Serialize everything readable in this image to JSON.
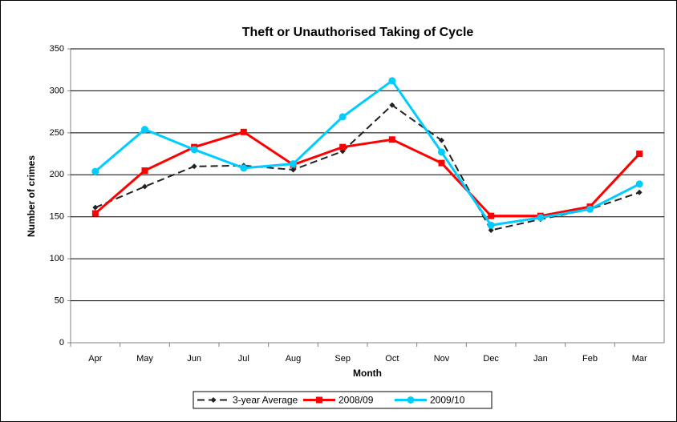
{
  "chart_data": {
    "type": "line",
    "title": "Theft or Unauthorised Taking of Cycle",
    "x_label": "Month",
    "y_label": "Number of crimes",
    "categories": [
      "Apr",
      "May",
      "Jun",
      "Jul",
      "Aug",
      "Sep",
      "Oct",
      "Nov",
      "Dec",
      "Jan",
      "Feb",
      "Mar"
    ],
    "series": [
      {
        "name": "3-year Average",
        "color": "#222222",
        "dash": true,
        "marker": "diamond",
        "values": [
          161,
          186,
          210,
          211,
          206,
          228,
          283,
          241,
          134,
          147,
          159,
          179
        ]
      },
      {
        "name": "2008/09",
        "color": "#ff0000",
        "dash": false,
        "marker": "square",
        "values": [
          154,
          205,
          233,
          251,
          212,
          233,
          242,
          214,
          151,
          151,
          162,
          225
        ]
      },
      {
        "name": "2009/10",
        "color": "#00ccff",
        "dash": false,
        "marker": "circle",
        "values": [
          204,
          254,
          230,
          208,
          213,
          269,
          312,
          227,
          140,
          149,
          159,
          189
        ]
      }
    ],
    "ylim": [
      0,
      350
    ],
    "yticks": [
      0,
      50,
      100,
      150,
      200,
      250,
      300,
      350
    ],
    "grid": true,
    "legend": "bottom"
  }
}
